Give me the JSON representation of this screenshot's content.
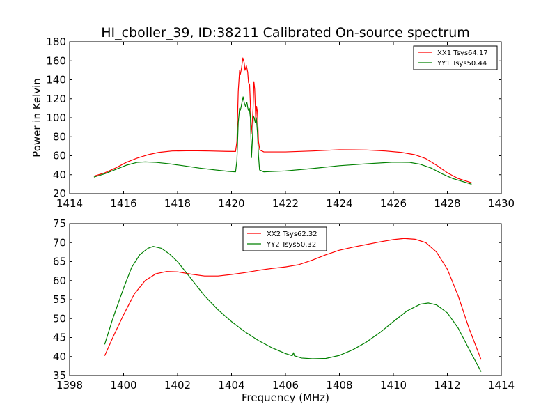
{
  "title": "HI_cboller_39, ID:38211 Calibrated On-source spectrum",
  "chart_data": [
    {
      "type": "line",
      "ylabel": "Power in Kelvin",
      "xlabel": "",
      "xlim": [
        1414,
        1430
      ],
      "ylim": [
        20,
        180
      ],
      "xticks": [
        1414,
        1416,
        1418,
        1420,
        1422,
        1424,
        1426,
        1428,
        1430
      ],
      "yticks": [
        20,
        40,
        60,
        80,
        100,
        120,
        140,
        160,
        180
      ],
      "legend_position": "top-right",
      "series": [
        {
          "name": "XX1 Tsys64.17",
          "color": "#ff0000",
          "points": [
            [
              1414.9,
              38.5
            ],
            [
              1415.3,
              42
            ],
            [
              1415.7,
              47
            ],
            [
              1416.1,
              53
            ],
            [
              1416.5,
              57.5
            ],
            [
              1416.9,
              61
            ],
            [
              1417.3,
              63.5
            ],
            [
              1417.8,
              65
            ],
            [
              1418.5,
              65.3
            ],
            [
              1419.2,
              65
            ],
            [
              1419.8,
              64.6
            ],
            [
              1420.15,
              64.5
            ],
            [
              1420.2,
              75
            ],
            [
              1420.25,
              128
            ],
            [
              1420.3,
              150
            ],
            [
              1420.33,
              146
            ],
            [
              1420.37,
              152
            ],
            [
              1420.42,
              163
            ],
            [
              1420.47,
              158
            ],
            [
              1420.5,
              150
            ],
            [
              1420.55,
              155
            ],
            [
              1420.6,
              148
            ],
            [
              1420.63,
              137
            ],
            [
              1420.67,
              135
            ],
            [
              1420.7,
              114
            ],
            [
              1420.73,
              83
            ],
            [
              1420.77,
              96
            ],
            [
              1420.8,
              110
            ],
            [
              1420.83,
              138
            ],
            [
              1420.86,
              130
            ],
            [
              1420.9,
              95
            ],
            [
              1420.93,
              112
            ],
            [
              1420.96,
              106
            ],
            [
              1421.0,
              75
            ],
            [
              1421.05,
              66
            ],
            [
              1421.2,
              64
            ],
            [
              1422,
              64
            ],
            [
              1423,
              65
            ],
            [
              1424,
              66.3
            ],
            [
              1425,
              66
            ],
            [
              1425.7,
              65
            ],
            [
              1426.3,
              63.5
            ],
            [
              1426.8,
              61
            ],
            [
              1427.2,
              57
            ],
            [
              1427.6,
              50
            ],
            [
              1428.0,
              42
            ],
            [
              1428.4,
              36
            ],
            [
              1428.9,
              31.5
            ]
          ]
        },
        {
          "name": "YY1 Tsys50.44",
          "color": "#008000",
          "points": [
            [
              1414.9,
              37.5
            ],
            [
              1415.3,
              41
            ],
            [
              1415.7,
              45.5
            ],
            [
              1416.1,
              50
            ],
            [
              1416.5,
              53
            ],
            [
              1416.8,
              53.5
            ],
            [
              1417.2,
              53
            ],
            [
              1417.7,
              51.5
            ],
            [
              1418.2,
              49.5
            ],
            [
              1418.8,
              47
            ],
            [
              1419.4,
              45
            ],
            [
              1419.9,
              43.5
            ],
            [
              1420.15,
              43
            ],
            [
              1420.2,
              55
            ],
            [
              1420.25,
              95
            ],
            [
              1420.3,
              110
            ],
            [
              1420.33,
              108
            ],
            [
              1420.38,
              115
            ],
            [
              1420.43,
              122
            ],
            [
              1420.48,
              115
            ],
            [
              1420.52,
              112
            ],
            [
              1420.57,
              116
            ],
            [
              1420.62,
              108
            ],
            [
              1420.66,
              110
            ],
            [
              1420.7,
              100
            ],
            [
              1420.74,
              58
            ],
            [
              1420.78,
              80
            ],
            [
              1420.81,
              102
            ],
            [
              1420.84,
              100
            ],
            [
              1420.88,
              95
            ],
            [
              1420.92,
              100
            ],
            [
              1420.96,
              85
            ],
            [
              1421.0,
              60
            ],
            [
              1421.04,
              45
            ],
            [
              1421.2,
              43
            ],
            [
              1422,
              44
            ],
            [
              1423,
              46.5
            ],
            [
              1424,
              49.5
            ],
            [
              1425,
              51.5
            ],
            [
              1426,
              53.2
            ],
            [
              1426.6,
              53
            ],
            [
              1427.0,
              51
            ],
            [
              1427.4,
              47
            ],
            [
              1427.8,
              41
            ],
            [
              1428.2,
              36
            ],
            [
              1428.9,
              30
            ]
          ]
        }
      ]
    },
    {
      "type": "line",
      "ylabel": "",
      "xlabel": "Frequency (MHz)",
      "xlim": [
        1398,
        1414
      ],
      "ylim": [
        35,
        75
      ],
      "xticks": [
        1398,
        1400,
        1402,
        1404,
        1406,
        1408,
        1410,
        1412,
        1414
      ],
      "yticks": [
        35,
        40,
        45,
        50,
        55,
        60,
        65,
        70,
        75
      ],
      "legend_position": "upper-center",
      "series": [
        {
          "name": "XX2 Tsys62.32",
          "color": "#ff0000",
          "points": [
            [
              1399.3,
              40.2
            ],
            [
              1399.6,
              45
            ],
            [
              1400.0,
              51
            ],
            [
              1400.4,
              56.5
            ],
            [
              1400.8,
              60
            ],
            [
              1401.2,
              61.8
            ],
            [
              1401.6,
              62.4
            ],
            [
              1402.0,
              62.3
            ],
            [
              1402.5,
              61.7
            ],
            [
              1403.0,
              61.2
            ],
            [
              1403.5,
              61.2
            ],
            [
              1404.0,
              61.6
            ],
            [
              1404.5,
              62.1
            ],
            [
              1405.0,
              62.7
            ],
            [
              1405.5,
              63.2
            ],
            [
              1406.0,
              63.6
            ],
            [
              1406.5,
              64.2
            ],
            [
              1407.0,
              65.4
            ],
            [
              1407.5,
              66.8
            ],
            [
              1408.0,
              68
            ],
            [
              1408.5,
              68.8
            ],
            [
              1409.0,
              69.5
            ],
            [
              1409.5,
              70.2
            ],
            [
              1410.0,
              70.8
            ],
            [
              1410.4,
              71.1
            ],
            [
              1410.8,
              70.9
            ],
            [
              1411.2,
              70
            ],
            [
              1411.6,
              67.5
            ],
            [
              1412.0,
              63
            ],
            [
              1412.4,
              56
            ],
            [
              1412.8,
              47.5
            ],
            [
              1413.25,
              39.2
            ]
          ]
        },
        {
          "name": "YY2 Tsys50.32",
          "color": "#008000",
          "points": [
            [
              1399.3,
              43.2
            ],
            [
              1399.6,
              50
            ],
            [
              1400.0,
              58
            ],
            [
              1400.3,
              63.5
            ],
            [
              1400.6,
              66.8
            ],
            [
              1400.9,
              68.5
            ],
            [
              1401.1,
              69
            ],
            [
              1401.4,
              68.5
            ],
            [
              1401.7,
              67
            ],
            [
              1402.0,
              65
            ],
            [
              1402.5,
              60.5
            ],
            [
              1403.0,
              56
            ],
            [
              1403.5,
              52.3
            ],
            [
              1404.0,
              49.2
            ],
            [
              1404.5,
              46.5
            ],
            [
              1405.0,
              44.2
            ],
            [
              1405.5,
              42.3
            ],
            [
              1406.0,
              40.8
            ],
            [
              1406.25,
              40.2
            ],
            [
              1406.3,
              41
            ],
            [
              1406.33,
              40.2
            ],
            [
              1406.6,
              39.6
            ],
            [
              1407.0,
              39.4
            ],
            [
              1407.5,
              39.5
            ],
            [
              1408.0,
              40.3
            ],
            [
              1408.5,
              41.8
            ],
            [
              1409.0,
              43.8
            ],
            [
              1409.5,
              46.3
            ],
            [
              1410.0,
              49.2
            ],
            [
              1410.5,
              52
            ],
            [
              1411.0,
              53.8
            ],
            [
              1411.3,
              54.1
            ],
            [
              1411.6,
              53.6
            ],
            [
              1412.0,
              51.5
            ],
            [
              1412.4,
              47.5
            ],
            [
              1412.8,
              42
            ],
            [
              1413.25,
              36
            ]
          ]
        }
      ]
    }
  ]
}
